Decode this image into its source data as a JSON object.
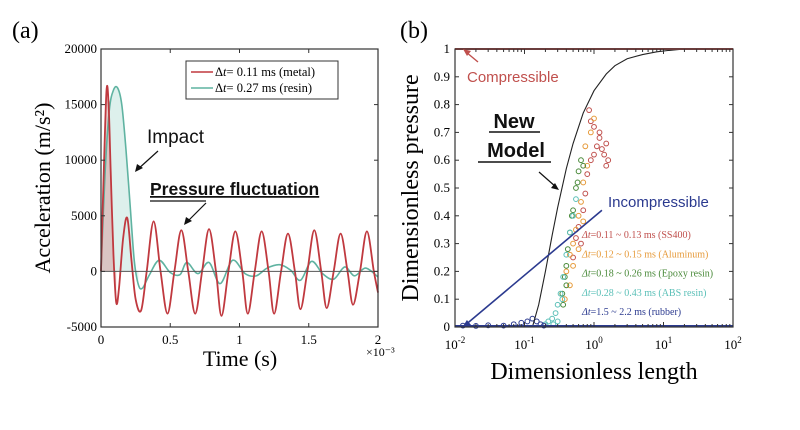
{
  "chart_data": [
    {
      "panel_label": "(a)",
      "type": "line",
      "title": "",
      "xlabel": "Time (s)",
      "ylabel": "Acceleration (m/s²)",
      "x_multiplier": "×10⁻³",
      "xlim": [
        0,
        2
      ],
      "ylim": [
        -5000,
        20000
      ],
      "xticks": [
        0,
        0.5,
        1,
        1.5,
        2
      ],
      "xtick_labels": [
        "0",
        "0.5",
        "1",
        "1.5",
        "2"
      ],
      "yticks": [
        -5000,
        0,
        5000,
        10000,
        15000,
        20000
      ],
      "ytick_labels": [
        "-5000",
        "0",
        "5000",
        "10000",
        "15000",
        "20000"
      ],
      "legend_position": "top-right",
      "series": [
        {
          "name": "Δt= 0.11 ms (metal)",
          "legend_prefix": "Δ",
          "legend_italic": "t",
          "legend_suffix": "= 0.11 ms (metal)",
          "color": "#c0393f",
          "fill": "#d9a9a8",
          "x": [
            0,
            0.02,
            0.04,
            0.055,
            0.07,
            0.09,
            0.11,
            0.13,
            0.16,
            0.19,
            0.22,
            0.25,
            0.29,
            0.33,
            0.38,
            0.43,
            0.48,
            0.53,
            0.58,
            0.63,
            0.68,
            0.73,
            0.78,
            0.83,
            0.87,
            0.92,
            0.97,
            1.02,
            1.06,
            1.11,
            1.16,
            1.21,
            1.25,
            1.3,
            1.35,
            1.4,
            1.44,
            1.49,
            1.54,
            1.59,
            1.63,
            1.68,
            1.73,
            1.78,
            1.82,
            1.87,
            1.92,
            1.97,
            2.0
          ],
          "y": [
            0,
            9000,
            16300,
            15000,
            9000,
            1500,
            -2800,
            -1500,
            3000,
            4800,
            1000,
            -2500,
            -3500,
            0,
            4500,
            0,
            -3800,
            0,
            3700,
            0,
            -3800,
            0,
            3800,
            0,
            -4000,
            0,
            3600,
            0,
            -3800,
            0,
            3600,
            0,
            -3800,
            0,
            3400,
            0,
            -3400,
            0,
            3700,
            0,
            -3300,
            0,
            3400,
            0,
            -3000,
            0,
            3600,
            0,
            -1900
          ]
        },
        {
          "name": "Δt= 0.27 ms (resin)",
          "legend_prefix": "Δ",
          "legend_italic": "t",
          "legend_suffix": "= 0.27 ms (resin)",
          "color": "#5fb3a1",
          "fill": "#c6e6e0",
          "x": [
            0,
            0.03,
            0.06,
            0.09,
            0.12,
            0.15,
            0.18,
            0.21,
            0.24,
            0.27,
            0.3,
            0.35,
            0.42,
            0.5,
            0.57,
            0.62,
            0.7,
            0.78,
            0.86,
            0.95,
            1.04,
            1.12,
            1.2,
            1.29,
            1.37,
            1.44,
            1.52,
            1.6,
            1.68,
            1.76,
            1.83,
            1.91,
            2.0
          ],
          "y": [
            0,
            9000,
            14500,
            16300,
            16500,
            15000,
            11000,
            6000,
            1000,
            -1200,
            -1500,
            -300,
            1000,
            -100,
            -300,
            800,
            -200,
            800,
            -1100,
            1000,
            -200,
            -400,
            300,
            600,
            100,
            -800,
            900,
            -200,
            -700,
            400,
            -400,
            300,
            -500
          ]
        }
      ],
      "annotations": [
        {
          "text": "Impact",
          "style": "sans"
        },
        {
          "text": "Pressure fluctuation",
          "style": "sans-bold-underline"
        }
      ]
    },
    {
      "panel_label": "(b)",
      "type": "scatter",
      "title": "",
      "xlabel": "Dimensionless length",
      "ylabel": "Dimensionless pressure",
      "xscale": "log",
      "xlim": [
        0.01,
        100
      ],
      "ylim": [
        0,
        1
      ],
      "xticks": [
        0.01,
        0.1,
        1,
        10,
        100
      ],
      "xtick_labels": [
        {
          "base": "10",
          "exp": "-2"
        },
        {
          "base": "10",
          "exp": "-1"
        },
        {
          "base": "10",
          "exp": "0"
        },
        {
          "base": "10",
          "exp": "1"
        },
        {
          "base": "10",
          "exp": "2"
        }
      ],
      "yticks": [
        0,
        0.1,
        0.2,
        0.3,
        0.4,
        0.5,
        0.6,
        0.7,
        0.8,
        0.9,
        1
      ],
      "ytick_labels": [
        "0",
        "0.1",
        "0.2",
        "0.3",
        "0.4",
        "0.5",
        "0.6",
        "0.7",
        "0.8",
        "0.9",
        "1"
      ],
      "legend_position": "bottom-right",
      "series": [
        {
          "name": "Δt=0.11 ~ 0.13 ms (SS400)",
          "legend_italic": "Δt",
          "legend_suffix": "=0.11 ~ 0.13 ms (SS400)",
          "color": "#c0504d",
          "points": [
            [
              0.55,
              0.32
            ],
            [
              0.6,
              0.36
            ],
            [
              0.7,
              0.42
            ],
            [
              0.75,
              0.48
            ],
            [
              0.8,
              0.55
            ],
            [
              0.9,
              0.6
            ],
            [
              1.0,
              0.62
            ],
            [
              1.1,
              0.65
            ],
            [
              1.2,
              0.68
            ],
            [
              1.3,
              0.64
            ],
            [
              1.4,
              0.62
            ],
            [
              1.5,
              0.66
            ],
            [
              1.6,
              0.6
            ],
            [
              1.2,
              0.7
            ],
            [
              1.0,
              0.72
            ],
            [
              0.9,
              0.74
            ],
            [
              0.85,
              0.78
            ],
            [
              1.5,
              0.58
            ],
            [
              0.65,
              0.3
            ],
            [
              0.5,
              0.25
            ]
          ]
        },
        {
          "name": "Δt=0.12 ~ 0.15 ms (Aluminum)",
          "legend_italic": "Δt",
          "legend_suffix": "=0.12 ~ 0.15 ms (Aluminum)",
          "color": "#e69a3a",
          "points": [
            [
              0.4,
              0.2
            ],
            [
              0.45,
              0.26
            ],
            [
              0.5,
              0.3
            ],
            [
              0.55,
              0.35
            ],
            [
              0.6,
              0.4
            ],
            [
              0.65,
              0.45
            ],
            [
              0.7,
              0.52
            ],
            [
              0.8,
              0.58
            ],
            [
              0.9,
              0.7
            ],
            [
              1.0,
              0.75
            ],
            [
              0.75,
              0.65
            ],
            [
              0.45,
              0.15
            ],
            [
              0.38,
              0.1
            ],
            [
              0.5,
              0.22
            ],
            [
              0.6,
              0.28
            ],
            [
              0.7,
              0.38
            ]
          ]
        },
        {
          "name": "Δt=0.18 ~ 0.26 ms (Epoxy resin)",
          "legend_italic": "Δt",
          "legend_suffix": "=0.18 ~ 0.26 ms (Epoxy resin)",
          "color": "#4a8a3a",
          "points": [
            [
              0.35,
              0.12
            ],
            [
              0.38,
              0.18
            ],
            [
              0.4,
              0.22
            ],
            [
              0.42,
              0.28
            ],
            [
              0.45,
              0.34
            ],
            [
              0.5,
              0.42
            ],
            [
              0.55,
              0.5
            ],
            [
              0.6,
              0.56
            ],
            [
              0.65,
              0.6
            ],
            [
              0.7,
              0.58
            ],
            [
              0.58,
              0.52
            ],
            [
              0.48,
              0.4
            ],
            [
              0.4,
              0.15
            ],
            [
              0.36,
              0.08
            ]
          ]
        },
        {
          "name": "Δt=0.28 ~ 0.43 ms (ABS resin)",
          "legend_italic": "Δt",
          "legend_suffix": "=0.28 ~ 0.43 ms (ABS resin)",
          "color": "#5cc0b8",
          "points": [
            [
              0.2,
              0.01
            ],
            [
              0.22,
              0.02
            ],
            [
              0.25,
              0.03
            ],
            [
              0.28,
              0.05
            ],
            [
              0.3,
              0.08
            ],
            [
              0.33,
              0.12
            ],
            [
              0.36,
              0.18
            ],
            [
              0.4,
              0.26
            ],
            [
              0.45,
              0.34
            ],
            [
              0.5,
              0.4
            ],
            [
              0.55,
              0.46
            ],
            [
              0.3,
              0.02
            ],
            [
              0.26,
              0.01
            ],
            [
              0.35,
              0.1
            ]
          ]
        },
        {
          "name": "Δt=1.5 ~ 2.2 ms (rubber)",
          "legend_italic": "Δt",
          "legend_suffix": "=1.5 ~ 2.2 ms (rubber)",
          "color": "#2b3a8f",
          "points": [
            [
              0.013,
              0.005
            ],
            [
              0.02,
              0.004
            ],
            [
              0.03,
              0.006
            ],
            [
              0.05,
              0.005
            ],
            [
              0.07,
              0.01
            ],
            [
              0.09,
              0.015
            ],
            [
              0.11,
              0.02
            ],
            [
              0.13,
              0.03
            ],
            [
              0.15,
              0.02
            ],
            [
              0.17,
              0.01
            ],
            [
              0.19,
              0.005
            ]
          ]
        }
      ],
      "lines": [
        {
          "name": "New Model",
          "color": "#222222",
          "x": [
            0.13,
            0.16,
            0.2,
            0.25,
            0.3,
            0.4,
            0.5,
            0.7,
            1.0,
            1.5,
            2,
            3,
            5,
            8,
            12,
            20,
            40,
            100
          ],
          "y": [
            0.0,
            0.08,
            0.2,
            0.33,
            0.43,
            0.57,
            0.66,
            0.77,
            0.85,
            0.91,
            0.94,
            0.965,
            0.98,
            0.99,
            0.995,
            1.0,
            1.0,
            1.0
          ]
        },
        {
          "name": "Incompressible",
          "color": "#2b3a8f",
          "x": [
            0.013,
            1.3
          ],
          "y": [
            0.0,
            0.42
          ]
        },
        {
          "name": "Compressible",
          "color": "#c0504d",
          "x": [
            0.01,
            100
          ],
          "y": [
            1.0,
            1.0
          ]
        }
      ],
      "annotations": [
        {
          "text": "Compressible",
          "color": "#c0504d"
        },
        {
          "text": "Incompressible",
          "color": "#2b3a8f"
        },
        {
          "text_line1": "New",
          "text_line2": "Model",
          "style": "sans-bold-underline"
        }
      ]
    }
  ]
}
